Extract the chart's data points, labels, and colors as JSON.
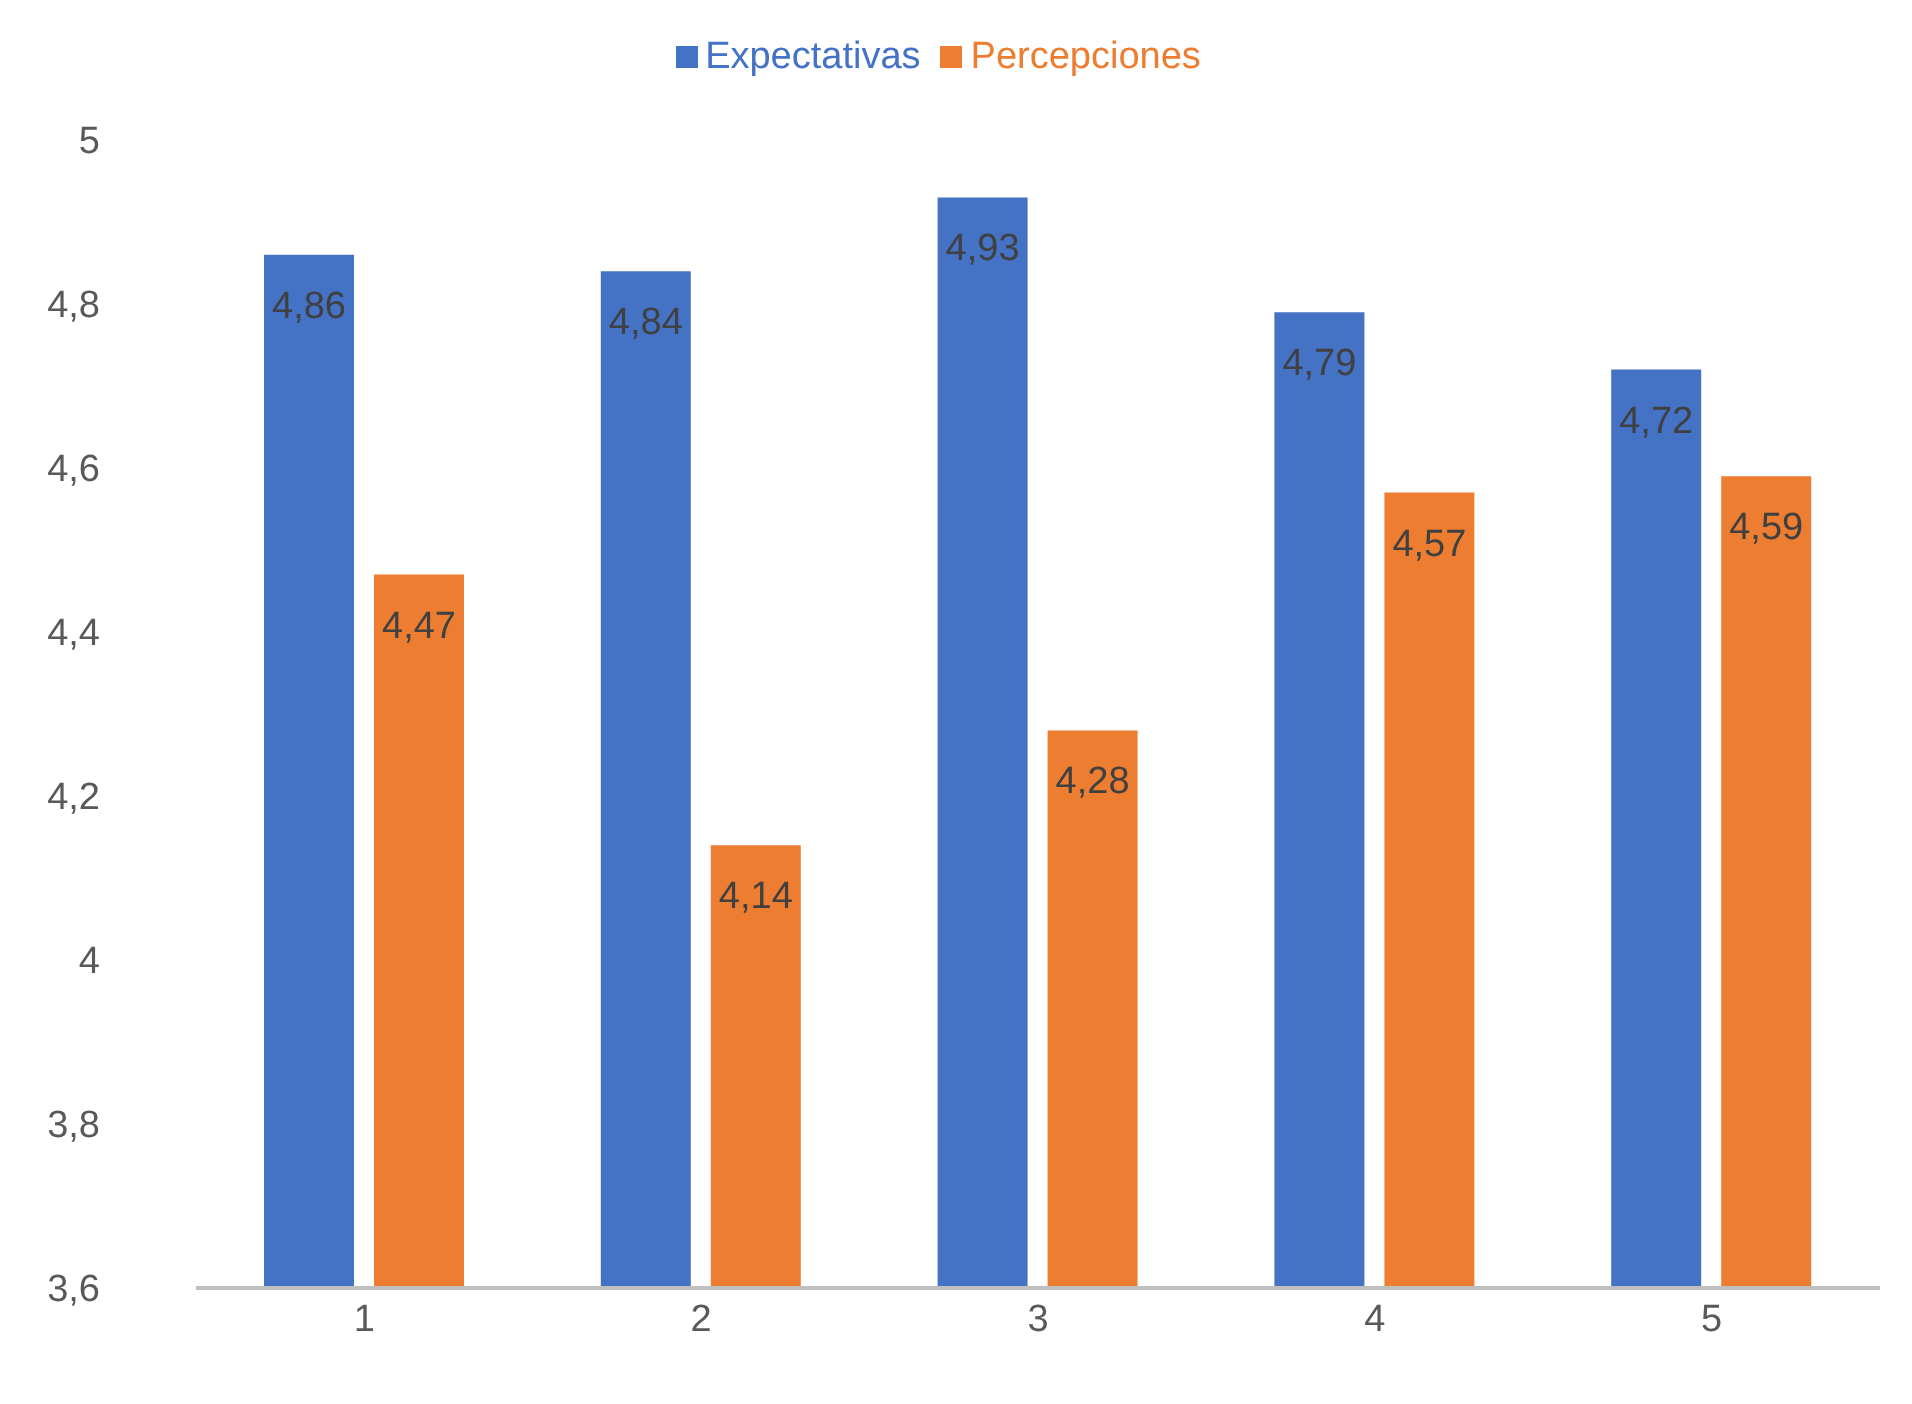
{
  "chart_data": {
    "type": "bar",
    "categories": [
      "1",
      "2",
      "3",
      "4",
      "5"
    ],
    "series": [
      {
        "name": "Expectativas",
        "color": "#4472c4",
        "values": [
          4.86,
          4.84,
          4.93,
          4.79,
          4.72
        ],
        "value_labels": [
          "4,86",
          "4,84",
          "4,93",
          "4,79",
          "4,72"
        ]
      },
      {
        "name": "Percepciones",
        "color": "#ed7d31",
        "values": [
          4.47,
          4.14,
          4.28,
          4.57,
          4.59
        ],
        "value_labels": [
          "4,47",
          "4,14",
          "4,28",
          "4,57",
          "4,59"
        ]
      }
    ],
    "ylim": [
      3.6,
      5
    ],
    "yticks": [
      {
        "value": 3.6,
        "label": "3,6"
      },
      {
        "value": 3.8,
        "label": "3,8"
      },
      {
        "value": 4,
        "label": "4"
      },
      {
        "value": 4.2,
        "label": "4,2"
      },
      {
        "value": 4.4,
        "label": "4,4"
      },
      {
        "value": 4.6,
        "label": "4,6"
      },
      {
        "value": 4.8,
        "label": "4,8"
      },
      {
        "value": 5,
        "label": "5"
      }
    ],
    "grid": false,
    "legend": "top"
  }
}
